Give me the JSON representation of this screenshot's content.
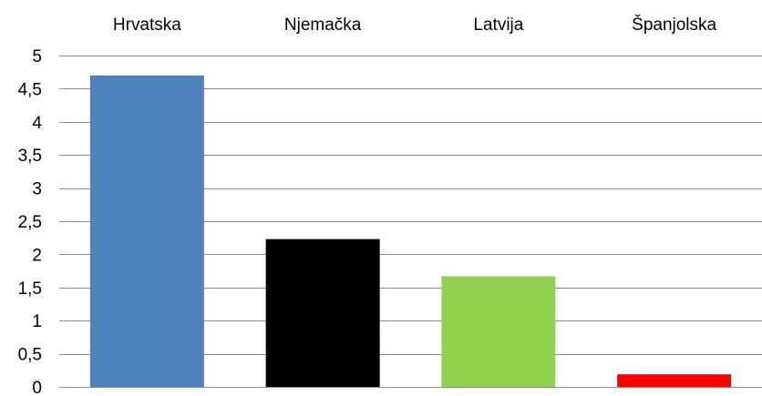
{
  "chart_data": {
    "type": "bar",
    "categories": [
      "Hrvatska",
      "Njemačka",
      "Latvija",
      "Španjolska"
    ],
    "values": [
      4.7,
      2.23,
      1.67,
      0.19
    ],
    "bar_colors": [
      "#4f81bd",
      "#000000",
      "#92d050",
      "#ff0000"
    ],
    "ylim": [
      0,
      5
    ],
    "y_ticks": [
      "0",
      "0,5",
      "1",
      "1,5",
      "2",
      "2,5",
      "3",
      "3,5",
      "4",
      "4,5",
      "5"
    ],
    "grid": true,
    "category_labels_position": "top",
    "title": "",
    "xlabel": "",
    "ylabel": ""
  }
}
